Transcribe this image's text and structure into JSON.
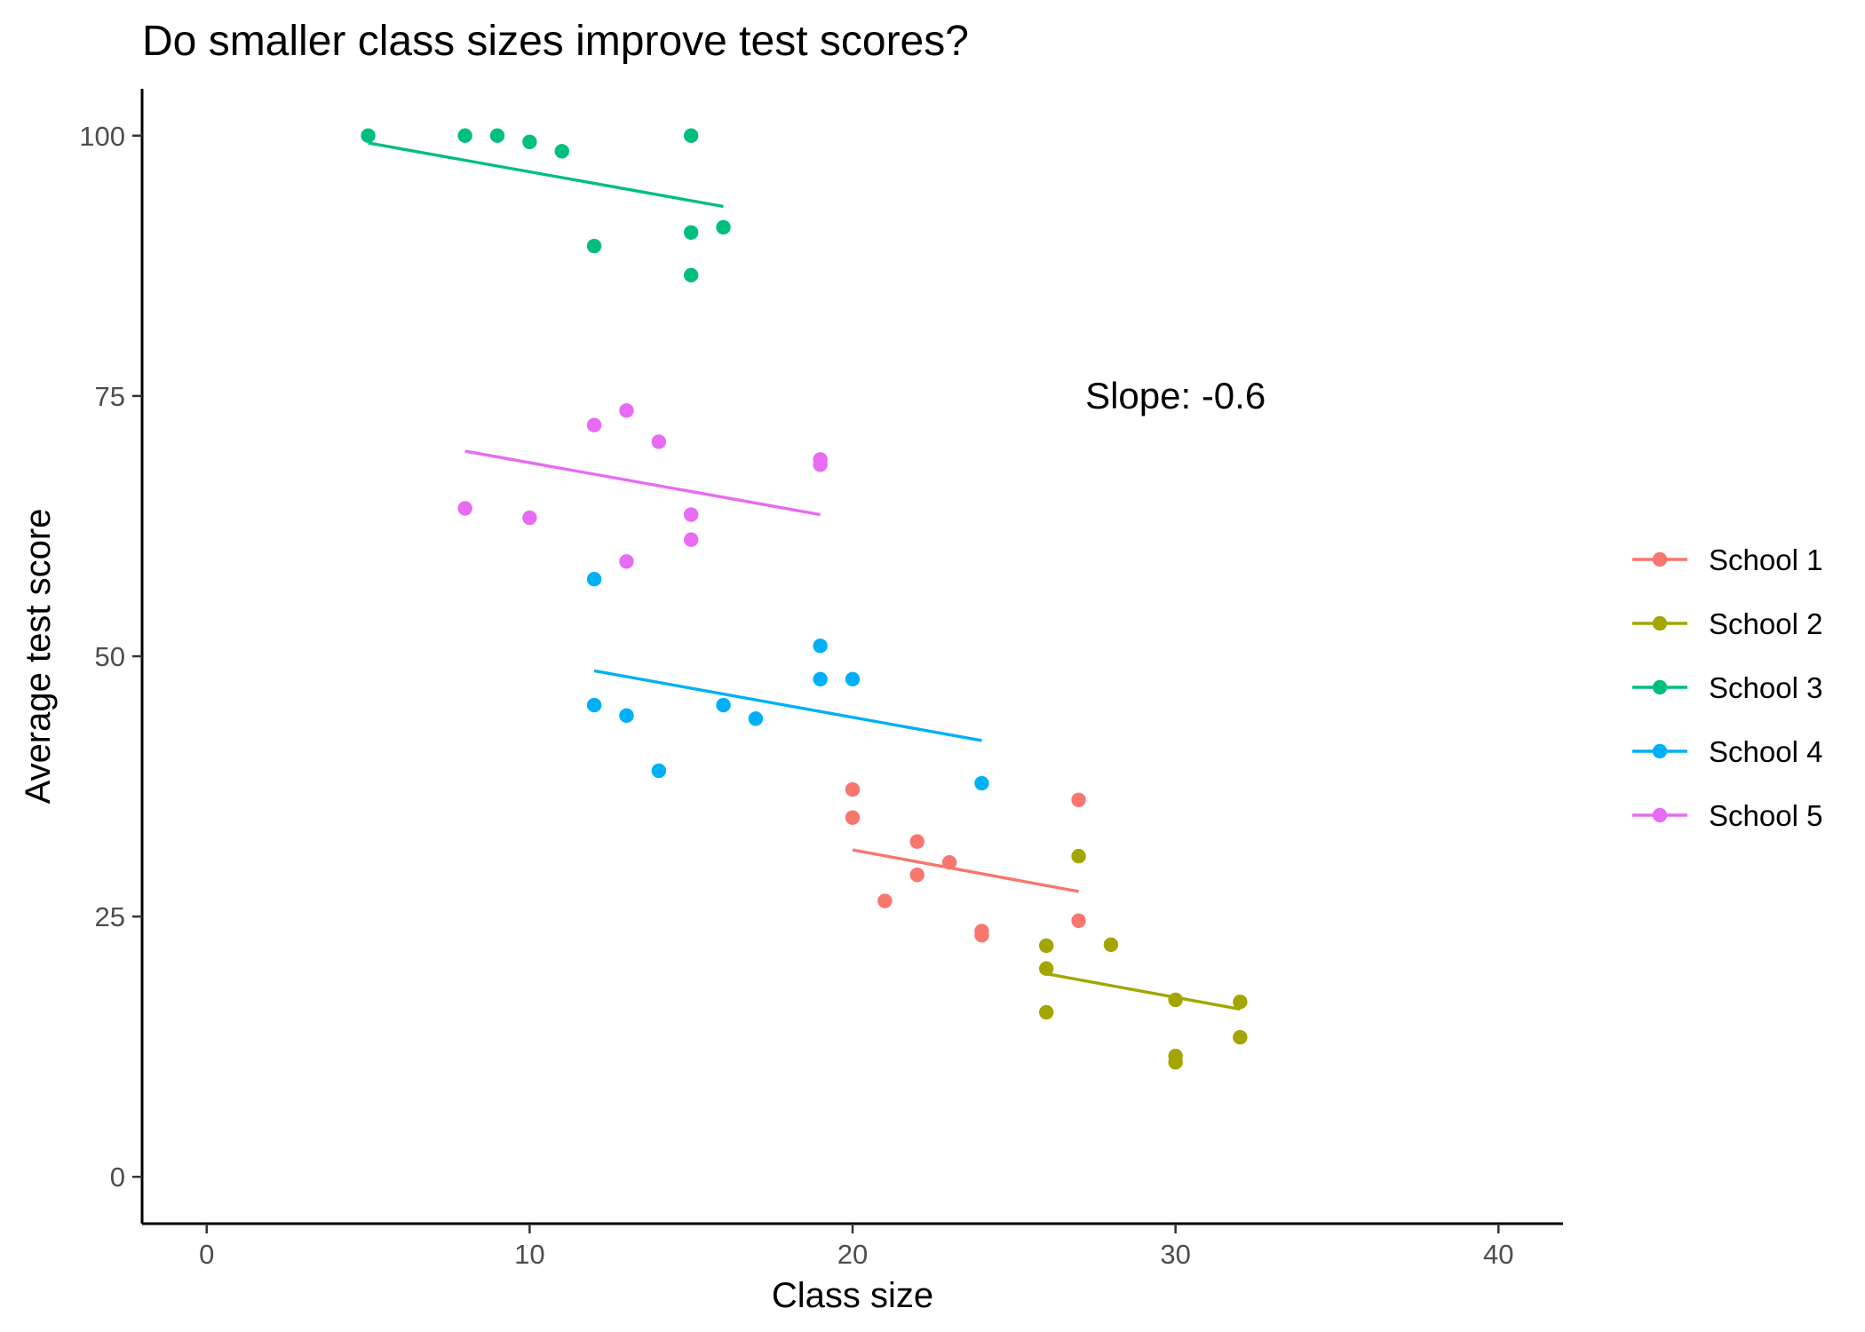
{
  "chart_data": {
    "type": "scatter",
    "title": "Do smaller class sizes improve test scores?",
    "xlabel": "Class size",
    "ylabel": "Average test score",
    "xlim": [
      -2,
      42
    ],
    "ylim": [
      -4.5,
      104.5
    ],
    "x_ticks": [
      0,
      10,
      20,
      30,
      40
    ],
    "y_ticks": [
      0,
      25,
      50,
      75,
      100
    ],
    "grid": false,
    "legend_position": "right",
    "annotation": {
      "text": "Slope: -0.6",
      "x": 30,
      "y": 75
    },
    "series": [
      {
        "name": "School 1",
        "color": "#F8766D",
        "points": [
          {
            "x": 20,
            "y": 37.2
          },
          {
            "x": 20,
            "y": 34.5
          },
          {
            "x": 21,
            "y": 26.5
          },
          {
            "x": 22,
            "y": 32.2
          },
          {
            "x": 22,
            "y": 29.0
          },
          {
            "x": 23,
            "y": 30.2
          },
          {
            "x": 24,
            "y": 23.6
          },
          {
            "x": 24,
            "y": 23.2
          },
          {
            "x": 27,
            "y": 36.2
          },
          {
            "x": 27,
            "y": 24.6
          }
        ],
        "fit": {
          "x": [
            20,
            27
          ],
          "y": [
            31.4,
            27.4
          ]
        }
      },
      {
        "name": "School 2",
        "color": "#A3A500",
        "points": [
          {
            "x": 26,
            "y": 22.2
          },
          {
            "x": 26,
            "y": 20.0
          },
          {
            "x": 26,
            "y": 15.8
          },
          {
            "x": 27,
            "y": 30.8
          },
          {
            "x": 28,
            "y": 22.3
          },
          {
            "x": 30,
            "y": 17.0
          },
          {
            "x": 30,
            "y": 11.6
          },
          {
            "x": 30,
            "y": 11.0
          },
          {
            "x": 32,
            "y": 16.8
          },
          {
            "x": 32,
            "y": 13.4
          }
        ],
        "fit": {
          "x": [
            26,
            32
          ],
          "y": [
            19.5,
            16.1
          ]
        }
      },
      {
        "name": "School 3",
        "color": "#00BF7D",
        "points": [
          {
            "x": 5,
            "y": 100.0
          },
          {
            "x": 8,
            "y": 100.0
          },
          {
            "x": 9,
            "y": 100.0
          },
          {
            "x": 10,
            "y": 99.4
          },
          {
            "x": 11,
            "y": 98.5
          },
          {
            "x": 12,
            "y": 89.4
          },
          {
            "x": 15,
            "y": 100.0
          },
          {
            "x": 15,
            "y": 90.7
          },
          {
            "x": 15,
            "y": 86.6
          },
          {
            "x": 16,
            "y": 91.2
          }
        ],
        "fit": {
          "x": [
            5,
            16
          ],
          "y": [
            99.3,
            93.2
          ]
        }
      },
      {
        "name": "School 4",
        "color": "#00B0F6",
        "points": [
          {
            "x": 12,
            "y": 57.4
          },
          {
            "x": 12,
            "y": 45.3
          },
          {
            "x": 13,
            "y": 44.3
          },
          {
            "x": 14,
            "y": 39.0
          },
          {
            "x": 16,
            "y": 45.3
          },
          {
            "x": 17,
            "y": 44.0
          },
          {
            "x": 19,
            "y": 51.0
          },
          {
            "x": 19,
            "y": 47.8
          },
          {
            "x": 20,
            "y": 47.8
          },
          {
            "x": 24,
            "y": 37.8
          }
        ],
        "fit": {
          "x": [
            12,
            24
          ],
          "y": [
            48.6,
            41.9
          ]
        }
      },
      {
        "name": "School 5",
        "color": "#E76BF3",
        "points": [
          {
            "x": 8,
            "y": 64.2
          },
          {
            "x": 10,
            "y": 63.3
          },
          {
            "x": 12,
            "y": 72.2
          },
          {
            "x": 13,
            "y": 73.6
          },
          {
            "x": 13,
            "y": 59.1
          },
          {
            "x": 14,
            "y": 70.6
          },
          {
            "x": 15,
            "y": 63.6
          },
          {
            "x": 15,
            "y": 61.2
          },
          {
            "x": 19,
            "y": 68.9
          },
          {
            "x": 19,
            "y": 68.4
          }
        ],
        "fit": {
          "x": [
            8,
            19
          ],
          "y": [
            69.7,
            63.6
          ]
        }
      }
    ]
  }
}
